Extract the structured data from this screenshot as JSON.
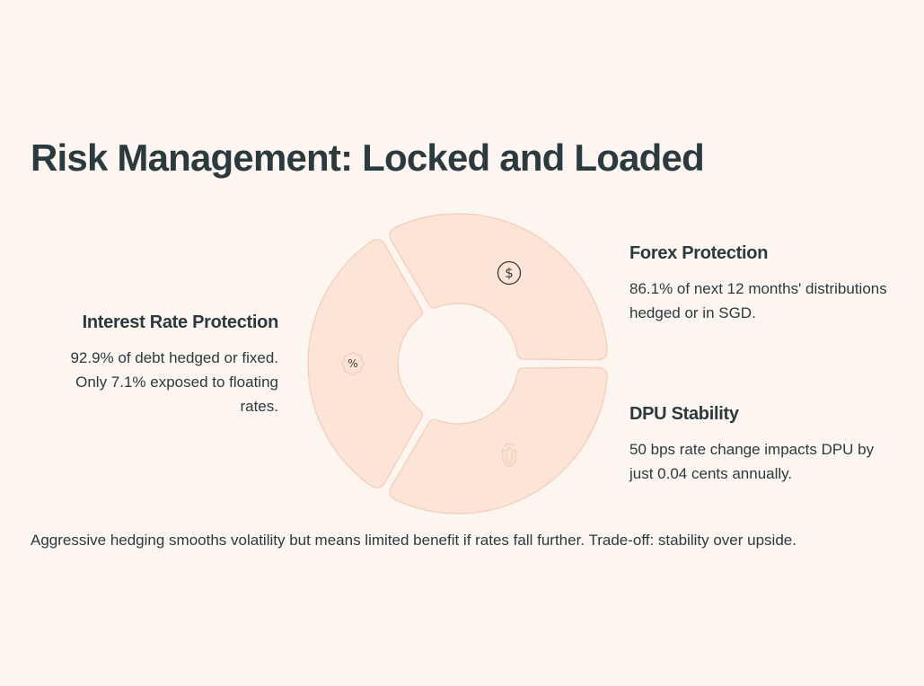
{
  "title": "Risk Management: Locked and Loaded",
  "segments": [
    {
      "id": "interest-rate",
      "icon": "percent-badge-icon",
      "heading": "Interest Rate Protection",
      "text": "92.9% of debt hedged or fixed. Only 7.1% exposed to floating rates."
    },
    {
      "id": "forex",
      "icon": "dollar-circle-icon",
      "heading": "Forex Protection",
      "text": "86.1% of next 12 months' distributions hedged or in SGD."
    },
    {
      "id": "dpu",
      "icon": "flower-icon",
      "heading": "DPU Stability",
      "text": "50 bps rate change impacts DPU by just 0.04 cents annually."
    }
  ],
  "footnote": "Aggressive hedging smooths volatility but means limited benefit if rates fall further. Trade-off: stability over upside.",
  "colors": {
    "background": "#fdf6f0",
    "segment_fill": "#fce4d6",
    "segment_stroke": "#f1cdb8",
    "text": "#2b3a3e"
  }
}
